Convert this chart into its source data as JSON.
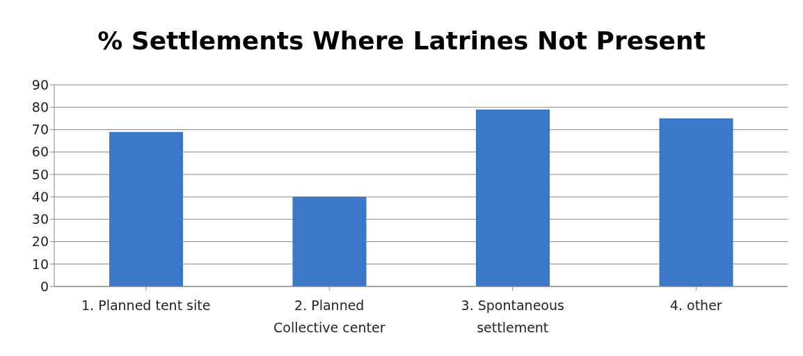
{
  "chart_data": {
    "type": "bar",
    "title": "% Settlements Where Latrines Not Present",
    "categories": [
      "1. Planned tent site",
      "2. Planned Collective center",
      "3. Spontaneous settlement",
      "4. other"
    ],
    "values": [
      69,
      40,
      79,
      75
    ],
    "color": "#3b78c9",
    "ylim": [
      0,
      90
    ],
    "yticks": [
      0,
      10,
      20,
      30,
      40,
      50,
      60,
      70,
      80,
      90
    ],
    "grid": "y"
  }
}
